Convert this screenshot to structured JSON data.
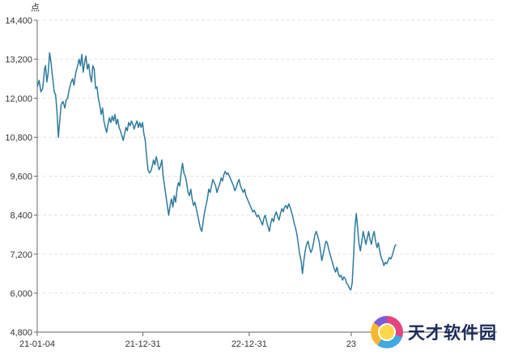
{
  "chart_data": {
    "type": "line",
    "unit_label": "点",
    "ylim": [
      4800,
      14400
    ],
    "yticks": [
      "4,800",
      "6,000",
      "7,200",
      "8,400",
      "9,600",
      "10,800",
      "12,000",
      "13,200",
      "14,400"
    ],
    "ytick_values": [
      4800,
      6000,
      7200,
      8400,
      9600,
      10800,
      12000,
      13200,
      14400
    ],
    "xlim": [
      0,
      1000
    ],
    "xticks": [
      {
        "label": "21-01-04",
        "x": 0
      },
      {
        "label": "21-12-31",
        "x": 230
      },
      {
        "label": "22-12-31",
        "x": 461
      },
      {
        "label": "23",
        "x": 683
      }
    ],
    "grid": true,
    "series": [
      {
        "color": "#2e7a9c",
        "points": [
          [
            0,
            12350
          ],
          [
            4,
            12550
          ],
          [
            8,
            12200
          ],
          [
            12,
            12300
          ],
          [
            16,
            12900
          ],
          [
            18,
            13000
          ],
          [
            21,
            12500
          ],
          [
            24,
            12800
          ],
          [
            27,
            13400
          ],
          [
            30,
            13100
          ],
          [
            33,
            12700
          ],
          [
            37,
            12200
          ],
          [
            40,
            12100
          ],
          [
            43,
            11600
          ],
          [
            46,
            10800
          ],
          [
            49,
            11300
          ],
          [
            52,
            11800
          ],
          [
            56,
            11900
          ],
          [
            60,
            11700
          ],
          [
            63,
            11950
          ],
          [
            66,
            12000
          ],
          [
            70,
            12300
          ],
          [
            74,
            12500
          ],
          [
            77,
            12600
          ],
          [
            80,
            12400
          ],
          [
            84,
            12800
          ],
          [
            88,
            13000
          ],
          [
            91,
            13200
          ],
          [
            94,
            13000
          ],
          [
            97,
            13350
          ],
          [
            100,
            12800
          ],
          [
            103,
            13100
          ],
          [
            106,
            13300
          ],
          [
            109,
            12900
          ],
          [
            112,
            13050
          ],
          [
            115,
            12700
          ],
          [
            118,
            12500
          ],
          [
            121,
            13000
          ],
          [
            124,
            12900
          ],
          [
            127,
            12300
          ],
          [
            130,
            12350
          ],
          [
            133,
            12000
          ],
          [
            136,
            11800
          ],
          [
            139,
            11500
          ],
          [
            142,
            11700
          ],
          [
            145,
            11300
          ],
          [
            148,
            11100
          ],
          [
            151,
            10950
          ],
          [
            154,
            11200
          ],
          [
            157,
            11400
          ],
          [
            160,
            11250
          ],
          [
            163,
            11450
          ],
          [
            166,
            11300
          ],
          [
            169,
            11500
          ],
          [
            172,
            11200
          ],
          [
            175,
            11350
          ],
          [
            178,
            11100
          ],
          [
            181,
            11000
          ],
          [
            184,
            10850
          ],
          [
            187,
            10700
          ],
          [
            190,
            10900
          ],
          [
            193,
            11100
          ],
          [
            196,
            11000
          ],
          [
            199,
            11250
          ],
          [
            202,
            11150
          ],
          [
            205,
            11300
          ],
          [
            208,
            11200
          ],
          [
            211,
            11050
          ],
          [
            214,
            11200
          ],
          [
            217,
            11300
          ],
          [
            220,
            11100
          ],
          [
            223,
            11250
          ],
          [
            226,
            11100
          ],
          [
            229,
            11250
          ],
          [
            232,
            10900
          ],
          [
            235,
            10700
          ],
          [
            238,
            10200
          ],
          [
            241,
            9800
          ],
          [
            244,
            9700
          ],
          [
            247,
            9750
          ],
          [
            250,
            9900
          ],
          [
            253,
            10100
          ],
          [
            256,
            9950
          ],
          [
            259,
            10200
          ],
          [
            262,
            10000
          ],
          [
            265,
            9800
          ],
          [
            268,
            9900
          ],
          [
            271,
            10100
          ],
          [
            274,
            9600
          ],
          [
            277,
            9300
          ],
          [
            280,
            9000
          ],
          [
            283,
            8700
          ],
          [
            286,
            8400
          ],
          [
            289,
            8700
          ],
          [
            292,
            8900
          ],
          [
            295,
            8650
          ],
          [
            298,
            9000
          ],
          [
            301,
            8800
          ],
          [
            304,
            9200
          ],
          [
            307,
            9400
          ],
          [
            310,
            9300
          ],
          [
            313,
            9700
          ],
          [
            316,
            10000
          ],
          [
            319,
            9700
          ],
          [
            322,
            9600
          ],
          [
            325,
            9400
          ],
          [
            328,
            9100
          ],
          [
            331,
            9000
          ],
          [
            334,
            9200
          ],
          [
            337,
            8900
          ],
          [
            340,
            8700
          ],
          [
            343,
            8800
          ],
          [
            346,
            8600
          ],
          [
            349,
            8400
          ],
          [
            352,
            8200
          ],
          [
            355,
            8000
          ],
          [
            358,
            7900
          ],
          [
            361,
            8200
          ],
          [
            364,
            8500
          ],
          [
            367,
            8700
          ],
          [
            370,
            8900
          ],
          [
            373,
            9200
          ],
          [
            376,
            9100
          ],
          [
            379,
            9300
          ],
          [
            382,
            9500
          ],
          [
            385,
            9400
          ],
          [
            388,
            9300
          ],
          [
            391,
            9100
          ],
          [
            394,
            9250
          ],
          [
            397,
            9350
          ],
          [
            400,
            9550
          ],
          [
            403,
            9450
          ],
          [
            406,
            9650
          ],
          [
            409,
            9750
          ],
          [
            412,
            9650
          ],
          [
            415,
            9700
          ],
          [
            418,
            9600
          ],
          [
            421,
            9500
          ],
          [
            424,
            9400
          ],
          [
            427,
            9300
          ],
          [
            430,
            9150
          ],
          [
            433,
            9250
          ],
          [
            436,
            9400
          ],
          [
            439,
            9500
          ],
          [
            442,
            9300
          ],
          [
            445,
            9200
          ],
          [
            448,
            9100
          ],
          [
            451,
            9200
          ],
          [
            454,
            9000
          ],
          [
            457,
            8900
          ],
          [
            460,
            8800
          ],
          [
            463,
            8700
          ],
          [
            466,
            8600
          ],
          [
            469,
            8500
          ],
          [
            472,
            8550
          ],
          [
            475,
            8450
          ],
          [
            478,
            8350
          ],
          [
            481,
            8400
          ],
          [
            484,
            8300
          ],
          [
            487,
            8200
          ],
          [
            490,
            8100
          ],
          [
            493,
            8300
          ],
          [
            496,
            8400
          ],
          [
            499,
            8200
          ],
          [
            502,
            8050
          ],
          [
            505,
            7900
          ],
          [
            508,
            8150
          ],
          [
            511,
            8300
          ],
          [
            514,
            8200
          ],
          [
            517,
            8400
          ],
          [
            520,
            8500
          ],
          [
            523,
            8350
          ],
          [
            526,
            8250
          ],
          [
            529,
            8450
          ],
          [
            532,
            8600
          ],
          [
            535,
            8500
          ],
          [
            538,
            8650
          ],
          [
            541,
            8700
          ],
          [
            544,
            8600
          ],
          [
            547,
            8750
          ],
          [
            550,
            8650
          ],
          [
            553,
            8500
          ],
          [
            556,
            8350
          ],
          [
            559,
            8150
          ],
          [
            562,
            8000
          ],
          [
            565,
            7800
          ],
          [
            568,
            7500
          ],
          [
            571,
            7200
          ],
          [
            574,
            7000
          ],
          [
            577,
            6600
          ],
          [
            580,
            7000
          ],
          [
            583,
            7300
          ],
          [
            586,
            7500
          ],
          [
            589,
            7600
          ],
          [
            592,
            7400
          ],
          [
            595,
            7250
          ],
          [
            598,
            7350
          ],
          [
            601,
            7550
          ],
          [
            604,
            7800
          ],
          [
            607,
            7900
          ],
          [
            610,
            7750
          ],
          [
            613,
            7600
          ],
          [
            616,
            7300
          ],
          [
            619,
            7000
          ],
          [
            622,
            7200
          ],
          [
            625,
            7400
          ],
          [
            628,
            7600
          ],
          [
            631,
            7550
          ],
          [
            634,
            7350
          ],
          [
            637,
            7200
          ],
          [
            640,
            7050
          ],
          [
            643,
            6900
          ],
          [
            646,
            6750
          ],
          [
            649,
            6650
          ],
          [
            652,
            6800
          ],
          [
            655,
            6600
          ],
          [
            658,
            6500
          ],
          [
            661,
            6550
          ],
          [
            664,
            6400
          ],
          [
            667,
            6500
          ],
          [
            670,
            6450
          ],
          [
            673,
            6300
          ],
          [
            676,
            6250
          ],
          [
            679,
            6150
          ],
          [
            682,
            6100
          ],
          [
            685,
            6300
          ],
          [
            688,
            7100
          ],
          [
            691,
            8000
          ],
          [
            694,
            8450
          ],
          [
            697,
            8000
          ],
          [
            700,
            7500
          ],
          [
            703,
            7300
          ],
          [
            706,
            7600
          ],
          [
            709,
            7900
          ],
          [
            712,
            7700
          ],
          [
            715,
            7500
          ],
          [
            718,
            7700
          ],
          [
            721,
            7900
          ],
          [
            724,
            7650
          ],
          [
            727,
            7500
          ],
          [
            730,
            7750
          ],
          [
            733,
            7900
          ],
          [
            736,
            7600
          ],
          [
            739,
            7400
          ],
          [
            742,
            7550
          ],
          [
            745,
            7300
          ],
          [
            748,
            7100
          ],
          [
            751,
            7000
          ],
          [
            754,
            6850
          ],
          [
            757,
            6950
          ],
          [
            760,
            6900
          ],
          [
            763,
            7000
          ],
          [
            766,
            7100
          ],
          [
            769,
            7050
          ],
          [
            772,
            7150
          ],
          [
            775,
            7300
          ],
          [
            778,
            7450
          ],
          [
            781,
            7500
          ]
        ]
      }
    ]
  },
  "watermark": {
    "text": "天才软件园",
    "logo_icon": "circular-logo-icon"
  }
}
